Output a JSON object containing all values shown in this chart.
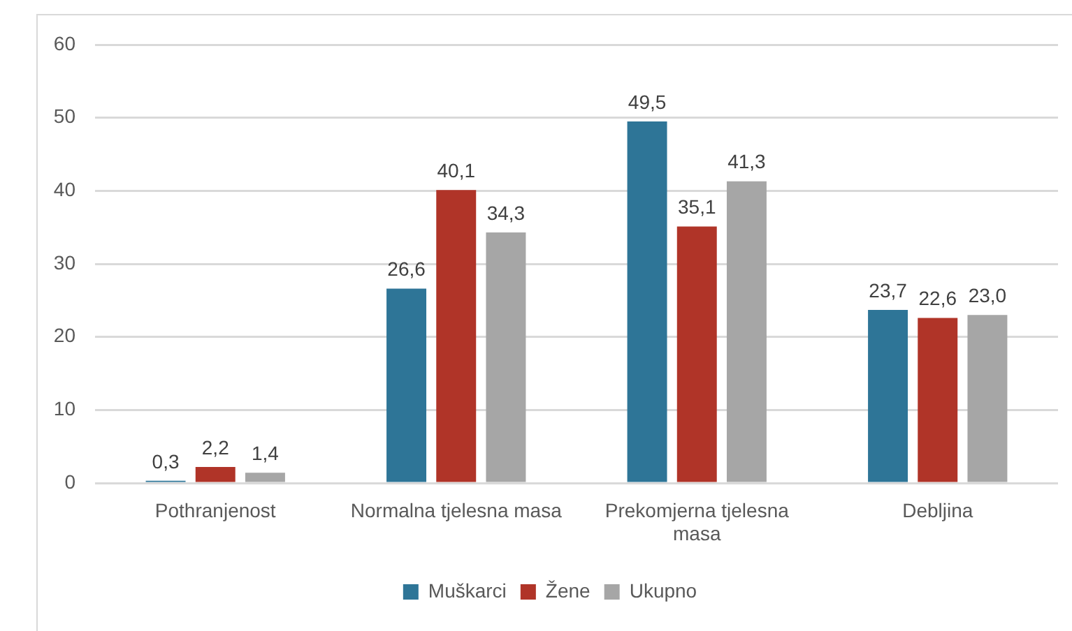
{
  "chart_data": {
    "type": "bar",
    "categories": [
      "Pothranjenost",
      "Normalna tjelesna masa",
      "Prekomjerna tjelesna masa",
      "Debljina"
    ],
    "series": [
      {
        "name": "Muškarci",
        "color": "#2e7597",
        "values": [
          0.3,
          26.6,
          49.5,
          23.7
        ],
        "value_labels": [
          "0,3",
          "26,6",
          "49,5",
          "23,7"
        ]
      },
      {
        "name": "Žene",
        "color": "#b03428",
        "values": [
          2.2,
          40.1,
          35.1,
          22.6
        ],
        "value_labels": [
          "2,2",
          "40,1",
          "35,1",
          "22,6"
        ]
      },
      {
        "name": "Ukupno",
        "color": "#a6a6a6",
        "values": [
          1.4,
          34.3,
          41.3,
          23.0
        ],
        "value_labels": [
          "1,4",
          "34,3",
          "41,3",
          "23,0"
        ]
      }
    ],
    "ylim": [
      0,
      60
    ],
    "yticks": [
      0,
      10,
      20,
      30,
      40,
      50,
      60
    ],
    "grid": "y",
    "legend": "bottom"
  }
}
